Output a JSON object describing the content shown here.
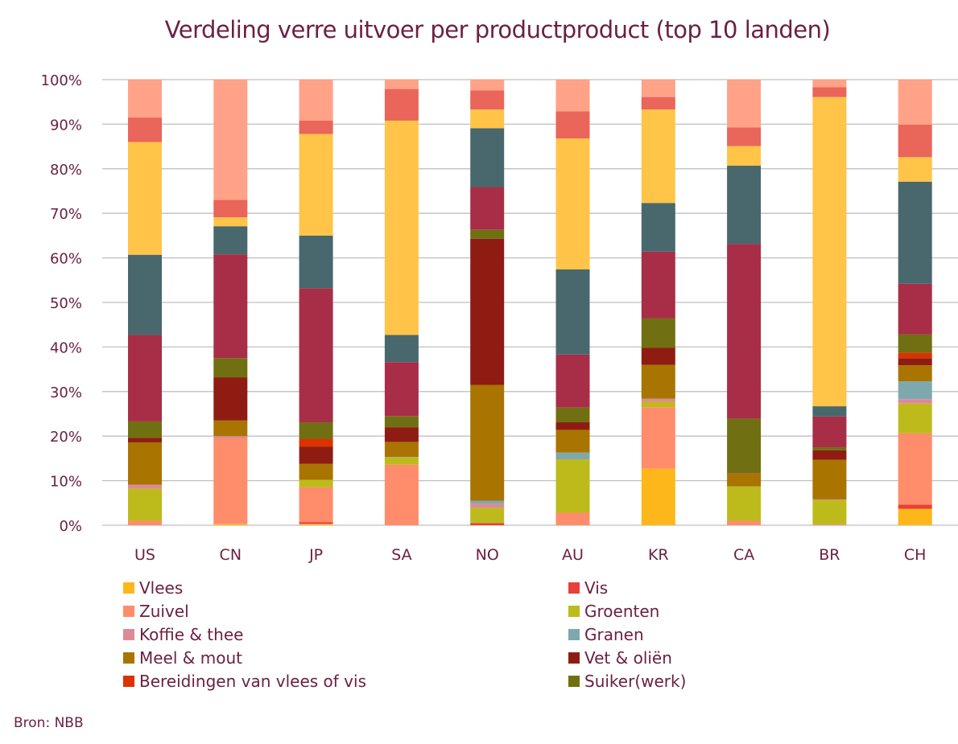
{
  "source": "Bron: NBB",
  "chart_data": {
    "type": "bar",
    "stacked": true,
    "percent": true,
    "title": "Verdeling verre uitvoer per productproduct (top 10 landen)",
    "xlabel": "",
    "ylabel": "",
    "ylim": [
      0,
      100
    ],
    "yticks": [
      "0%",
      "10%",
      "20%",
      "30%",
      "40%",
      "50%",
      "60%",
      "70%",
      "80%",
      "90%",
      "100%"
    ],
    "grid": true,
    "legend_position": "bottom",
    "categories": [
      "US",
      "CN",
      "JP",
      "SA",
      "NO",
      "AU",
      "KR",
      "CA",
      "BR",
      "CH"
    ],
    "series": [
      {
        "name": "Vlees",
        "color": "#FDB71B",
        "in_legend": true,
        "values": [
          0,
          0.3,
          0.3,
          0,
          0,
          0,
          12.7,
          0,
          0,
          3.7
        ]
      },
      {
        "name": "Vis",
        "color": "#E5413A",
        "in_legend": true,
        "values": [
          0,
          0,
          0.4,
          0,
          0.5,
          0,
          0,
          0,
          0,
          0.9
        ]
      },
      {
        "name": "Zuivel",
        "color": "#FF8C6B",
        "in_legend": true,
        "values": [
          1.0,
          19.2,
          7.8,
          13.6,
          0,
          2.8,
          13.8,
          1.0,
          0.2,
          16.0
        ]
      },
      {
        "name": "Groenten",
        "color": "#BDBB1B",
        "in_legend": true,
        "values": [
          7.2,
          0,
          1.7,
          1.6,
          3.4,
          12.0,
          1.2,
          7.7,
          5.4,
          6.7
        ]
      },
      {
        "name": "Koffie & thee",
        "color": "#DE8A96",
        "in_legend": true,
        "values": [
          0.9,
          0.5,
          0,
          0,
          0.9,
          0,
          0.7,
          0,
          0.2,
          1.0
        ]
      },
      {
        "name": "Granen",
        "color": "#7FA8AE",
        "in_legend": true,
        "values": [
          0,
          0,
          0,
          0.1,
          0.7,
          1.5,
          0,
          0,
          0,
          4.0
        ]
      },
      {
        "name": "Meel & mout",
        "color": "#A97400",
        "in_legend": true,
        "values": [
          9.5,
          3.5,
          3.6,
          3.4,
          26.0,
          5.1,
          7.6,
          2.9,
          8.9,
          3.6
        ]
      },
      {
        "name": "Vet & oliën",
        "color": "#8F1C13",
        "in_legend": true,
        "values": [
          1.0,
          9.7,
          3.8,
          3.3,
          32.8,
          1.7,
          3.8,
          0.1,
          2.1,
          1.6
        ]
      },
      {
        "name": "Bereidingen van vlees of vis",
        "color": "#DB3300",
        "in_legend": true,
        "values": [
          0,
          0,
          1.8,
          0,
          0,
          0,
          0,
          0,
          0,
          1.2
        ]
      },
      {
        "name": "Suiker(werk)",
        "color": "#707012",
        "in_legend": true,
        "values": [
          3.7,
          4.3,
          3.7,
          2.5,
          2.0,
          3.3,
          6.6,
          12.2,
          0.7,
          4.1
        ]
      },
      {
        "name": "",
        "color": "#A82E47",
        "in_legend": false,
        "values": [
          19.4,
          23.3,
          30.1,
          12.1,
          9.6,
          11.9,
          15.0,
          39.2,
          6.9,
          11.4
        ]
      },
      {
        "name": "",
        "color": "#48686E",
        "in_legend": false,
        "values": [
          18.0,
          6.3,
          11.8,
          6.1,
          13.2,
          19.1,
          10.9,
          17.6,
          2.3,
          22.9
        ]
      },
      {
        "name": "",
        "color": "#FFC448",
        "in_legend": false,
        "values": [
          25.3,
          2.0,
          22.8,
          48.1,
          4.2,
          29.4,
          21.0,
          4.4,
          69.4,
          5.5
        ]
      },
      {
        "name": "",
        "color": "#EA655A",
        "in_legend": false,
        "values": [
          5.5,
          3.9,
          3.0,
          7.1,
          4.3,
          6.1,
          2.8,
          4.2,
          2.2,
          7.3
        ]
      },
      {
        "name": "",
        "color": "#FFA287",
        "in_legend": false,
        "values": [
          8.5,
          27.0,
          9.2,
          2.1,
          2.4,
          7.1,
          3.9,
          10.7,
          1.7,
          10.1
        ]
      }
    ]
  }
}
